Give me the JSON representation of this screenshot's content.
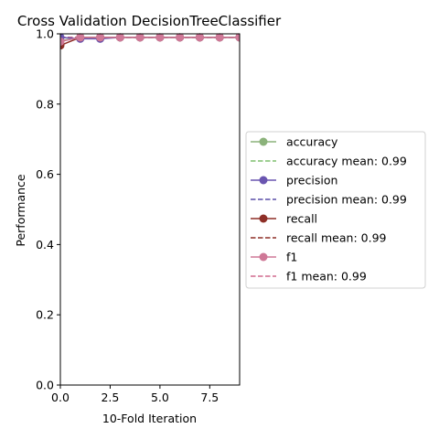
{
  "chart_data": {
    "type": "line",
    "title": "Cross Validation DecisionTreeClassifier",
    "xlabel": "10-Fold Iteration",
    "ylabel": "Performance",
    "xlim": [
      0,
      9
    ],
    "ylim": [
      0,
      1.0
    ],
    "x_ticks": [
      "0.0",
      "2.5",
      "5.0",
      "7.5"
    ],
    "y_ticks": [
      "0.0",
      "0.2",
      "0.4",
      "0.6",
      "0.8",
      "1.0"
    ],
    "x": [
      0,
      1,
      2,
      3,
      4,
      5,
      6,
      7,
      8,
      9
    ],
    "series": [
      {
        "name": "accuracy",
        "color": "#8bb27a",
        "values": [
          0.98,
          0.99,
          0.99,
          0.99,
          0.99,
          0.99,
          0.99,
          0.99,
          0.99,
          0.99
        ]
      },
      {
        "name": "precision",
        "color": "#6a55b0",
        "values": [
          0.99,
          0.986,
          0.986,
          0.99,
          0.99,
          0.99,
          0.99,
          0.99,
          0.99,
          0.99
        ]
      },
      {
        "name": "recall",
        "color": "#8e2f27",
        "values": [
          0.967,
          0.99,
          0.99,
          0.99,
          0.99,
          0.99,
          0.99,
          0.99,
          0.99,
          0.99
        ]
      },
      {
        "name": "f1",
        "color": "#cf7897",
        "values": [
          0.978,
          0.99,
          0.99,
          0.99,
          0.99,
          0.99,
          0.99,
          0.99,
          0.99,
          0.99
        ]
      }
    ],
    "means": [
      {
        "label": "accuracy mean: 0.99",
        "value": 0.99,
        "color": "#7fbf6f"
      },
      {
        "label": "precision mean: 0.99",
        "value": 0.99,
        "color": "#5a4fa8"
      },
      {
        "label": "recall mean: 0.99",
        "value": 0.99,
        "color": "#8e2f27"
      },
      {
        "label": "f1 mean: 0.99",
        "value": 0.99,
        "color": "#d06a8e"
      }
    ],
    "legend_position": "center-right",
    "grid": false
  }
}
